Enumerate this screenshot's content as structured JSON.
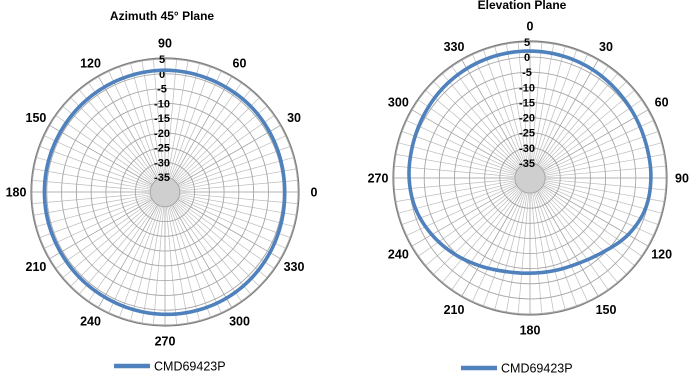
{
  "chart_data": [
    {
      "type": "polar",
      "title": "Azimuth 45° Plane",
      "angle_ticks": [
        "0",
        "30",
        "60",
        "90",
        "120",
        "150",
        "180",
        "210",
        "240",
        "270",
        "300",
        "330"
      ],
      "angle_zero_direction": "right",
      "angle_direction": "counterclockwise",
      "radial_ticks": [
        "5",
        "0",
        "-5",
        "-10",
        "-15",
        "-20",
        "-25",
        "-30",
        "-35"
      ],
      "radial_range": [
        -40,
        5
      ],
      "radial_gridlines": [
        5,
        0,
        -5,
        -10,
        -15,
        -20,
        -25,
        -30,
        -35
      ],
      "grid": true,
      "legend_position": "bottom",
      "series": [
        {
          "name": "CMD69423P",
          "color": "#4f81bd",
          "angles": [
            0,
            15,
            30,
            45,
            60,
            75,
            90,
            105,
            120,
            135,
            150,
            165,
            180,
            195,
            210,
            225,
            240,
            255,
            270,
            285,
            300,
            315,
            330,
            345
          ],
          "values": [
            0.5,
            0.6,
            0.8,
            1.0,
            1.0,
            1.1,
            1.2,
            1.1,
            1.0,
            0.9,
            0.8,
            0.8,
            0.8,
            0.8,
            0.8,
            0.9,
            1.0,
            1.2,
            1.4,
            1.5,
            1.5,
            1.3,
            1.0,
            0.7
          ]
        }
      ]
    },
    {
      "type": "polar",
      "title": "Elevation Plane",
      "angle_ticks": [
        "0",
        "30",
        "60",
        "90",
        "120",
        "150",
        "180",
        "210",
        "240",
        "270",
        "300",
        "330"
      ],
      "angle_zero_direction": "top",
      "angle_direction": "clockwise",
      "radial_ticks": [
        "5",
        "0",
        "-5",
        "-10",
        "-15",
        "-20",
        "-25",
        "-30",
        "-35"
      ],
      "radial_range": [
        -40,
        5
      ],
      "radial_gridlines": [
        5,
        0,
        -5,
        -10,
        -15,
        -20,
        -25,
        -30,
        -35
      ],
      "grid": true,
      "legend_position": "bottom",
      "series": [
        {
          "name": "CMD69423P",
          "color": "#4f81bd",
          "angles": [
            0,
            15,
            30,
            45,
            60,
            75,
            90,
            105,
            120,
            135,
            150,
            165,
            180,
            195,
            210,
            225,
            240,
            255,
            270,
            285,
            300,
            315,
            330,
            345
          ],
          "values": [
            2.0,
            1.8,
            1.4,
            0.8,
            0.3,
            0.0,
            0.0,
            -0.5,
            -2.5,
            -5.5,
            -7.5,
            -8.3,
            -8.5,
            -8.0,
            -6.5,
            -4.5,
            -2.5,
            -0.8,
            0.0,
            0.3,
            0.8,
            1.4,
            1.8,
            2.0
          ]
        }
      ]
    }
  ]
}
